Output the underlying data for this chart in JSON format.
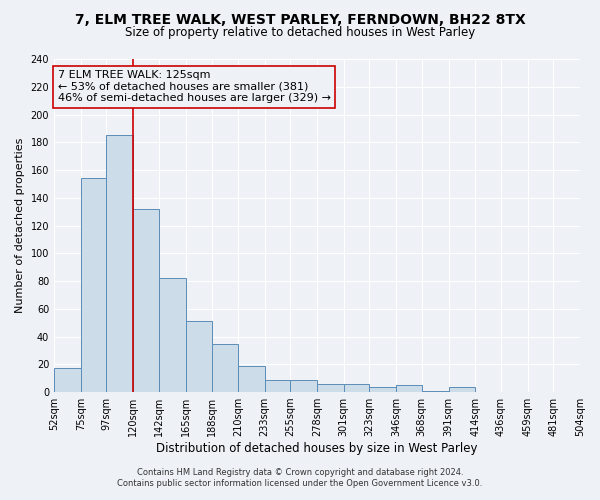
{
  "title": "7, ELM TREE WALK, WEST PARLEY, FERNDOWN, BH22 8TX",
  "subtitle": "Size of property relative to detached houses in West Parley",
  "xlabel": "Distribution of detached houses by size in West Parley",
  "ylabel": "Number of detached properties",
  "bar_edges": [
    52,
    75,
    97,
    120,
    142,
    165,
    188,
    210,
    233,
    255,
    278,
    301,
    323,
    346,
    368,
    391,
    414,
    436,
    459,
    481,
    504
  ],
  "bar_heights": [
    17,
    154,
    185,
    132,
    82,
    51,
    35,
    19,
    9,
    9,
    6,
    6,
    4,
    5,
    1,
    4,
    0,
    0,
    0,
    0
  ],
  "bar_color": "#ccdce8",
  "bar_edgecolor": "#5b8db8",
  "vline_x": 120,
  "vline_color": "#cc0000",
  "ylim": [
    0,
    240
  ],
  "yticks": [
    0,
    20,
    40,
    60,
    80,
    100,
    120,
    140,
    160,
    180,
    200,
    220,
    240
  ],
  "annotation_title": "7 ELM TREE WALK: 125sqm",
  "annotation_line1": "← 53% of detached houses are smaller (381)",
  "annotation_line2": "46% of semi-detached houses are larger (329) →",
  "annotation_box_edgecolor": "#cc0000",
  "footnote_line1": "Contains HM Land Registry data © Crown copyright and database right 2024.",
  "footnote_line2": "Contains public sector information licensed under the Open Government Licence v3.0.",
  "bg_color": "#eef2f7",
  "grid_color": "#ffffff",
  "title_fontsize": 10,
  "subtitle_fontsize": 8.5,
  "xlabel_fontsize": 8.5,
  "ylabel_fontsize": 8,
  "tick_fontsize": 7,
  "annot_fontsize": 8,
  "footnote_fontsize": 6
}
